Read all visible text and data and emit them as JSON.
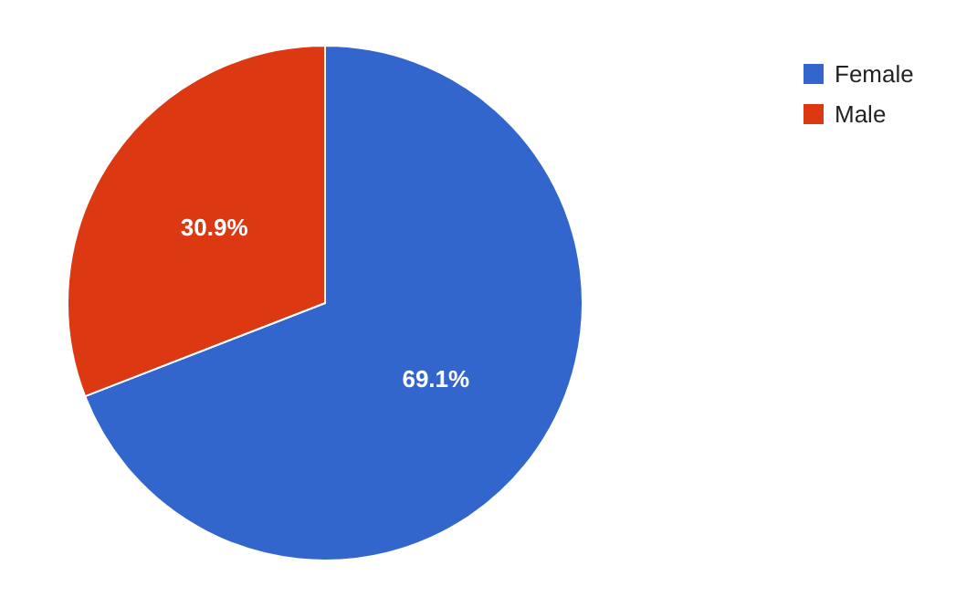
{
  "chart_data": {
    "type": "pie",
    "categories": [
      "Female",
      "Male"
    ],
    "values": [
      69.1,
      30.9
    ],
    "colors": [
      "#3366cc",
      "#dc3912"
    ],
    "value_labels": [
      "69.1%",
      "30.9%"
    ],
    "legend": "top right"
  }
}
